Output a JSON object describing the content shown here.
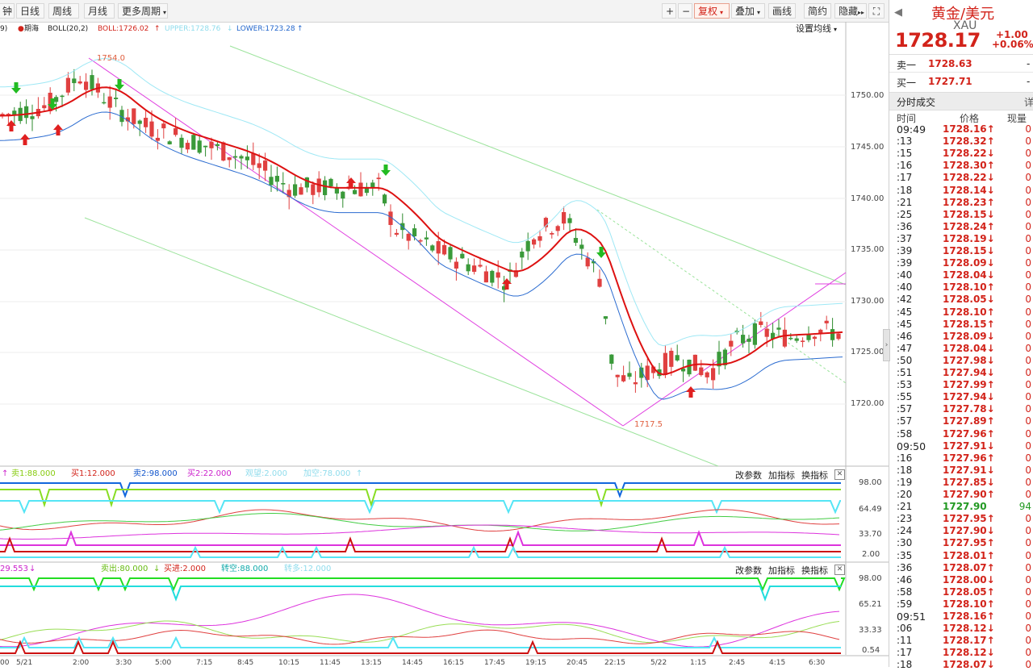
{
  "toolbar": {
    "period_buttons": [
      "钟",
      "日线",
      "周线",
      "月线",
      "更多周期"
    ],
    "right_buttons": [
      "复权",
      "叠加",
      "画线",
      "简约",
      "隐藏"
    ],
    "plus": "+",
    "minus": "−",
    "expand_icon": "fullscreen-icon",
    "double_arrow": "▸▸"
  },
  "main_legend": {
    "prefix": "9)",
    "contract": "期海",
    "indicator": "BOLL(20,2)",
    "boll": "BOLL:1726.02",
    "upper": "UPPER:1728.76",
    "lower": "LOWER:1723.28",
    "settings": "设置均线"
  },
  "price_axis": [
    "1750.00",
    "1745.00",
    "1740.00",
    "1735.00",
    "1730.00",
    "1725.00",
    "1720.00"
  ],
  "annotations": {
    "high": "1754.0",
    "low": "1717.5"
  },
  "panel1": {
    "sell1": "卖1:88.000",
    "buy1": "买1:12.000",
    "sell2": "卖2:98.000",
    "buy2": "买2:22.000",
    "extra1": "观望:2.000",
    "extra2": "加空:78.000",
    "axis": [
      "98.00",
      "64.49",
      "33.70",
      "2.00"
    ],
    "buttons": [
      "改参数",
      "加指标",
      "换指标"
    ]
  },
  "panel2": {
    "value": "29.553",
    "out": "卖出:80.000",
    "in": "买进:2.000",
    "short": "转空:88.000",
    "long": "转多:12.000",
    "axis": [
      "98.00",
      "65.21",
      "33.33",
      "0.54"
    ],
    "buttons": [
      "改参数",
      "加指标",
      "换指标"
    ]
  },
  "time_axis": [
    ":00",
    "5/21",
    "2:00",
    "3:30",
    "5:00",
    "7:15",
    "8:45",
    "10:15",
    "11:45",
    "13:15",
    "14:45",
    "16:15",
    "17:45",
    "19:15",
    "20:45",
    "22:15",
    "5/22",
    "1:15",
    "2:45",
    "4:15",
    "6:30"
  ],
  "quote": {
    "name": "黄金/美元",
    "code": "XAU",
    "price": "1728.17",
    "change": "+1.00",
    "change_pct": "+0.06%",
    "sell_label": "卖一",
    "sell_price": "1728.63",
    "sell_tail": "-",
    "buy_label": "买一",
    "buy_price": "1727.71",
    "buy_tail": "-",
    "tick_title": "分时成交",
    "tick_more": "详",
    "col_time": "时间",
    "col_price": "价格",
    "col_qty": "现量",
    "colors": {
      "up": "#d2231a",
      "down": "#229922"
    }
  },
  "ticks": [
    {
      "t": "09:49",
      "p": "1728.16↑",
      "q": "0",
      "dir": "up",
      "big": true
    },
    {
      "t": ":13",
      "p": "1728.32↑",
      "q": "0",
      "dir": "up"
    },
    {
      "t": ":15",
      "p": "1728.22↓",
      "q": "0",
      "dir": "up"
    },
    {
      "t": ":16",
      "p": "1728.30↑",
      "q": "0",
      "dir": "up"
    },
    {
      "t": ":17",
      "p": "1728.22↓",
      "q": "0",
      "dir": "up"
    },
    {
      "t": ":18",
      "p": "1728.14↓",
      "q": "0",
      "dir": "up"
    },
    {
      "t": ":21",
      "p": "1728.23↑",
      "q": "0",
      "dir": "up"
    },
    {
      "t": ":25",
      "p": "1728.15↓",
      "q": "0",
      "dir": "up"
    },
    {
      "t": ":36",
      "p": "1728.24↑",
      "q": "0",
      "dir": "up"
    },
    {
      "t": ":37",
      "p": "1728.19↓",
      "q": "0",
      "dir": "up"
    },
    {
      "t": ":39",
      "p": "1728.15↓",
      "q": "0",
      "dir": "up"
    },
    {
      "t": ":39",
      "p": "1728.09↓",
      "q": "0",
      "dir": "up"
    },
    {
      "t": ":40",
      "p": "1728.04↓",
      "q": "0",
      "dir": "up"
    },
    {
      "t": ":40",
      "p": "1728.10↑",
      "q": "0",
      "dir": "up"
    },
    {
      "t": ":42",
      "p": "1728.05↓",
      "q": "0",
      "dir": "up"
    },
    {
      "t": ":45",
      "p": "1728.10↑",
      "q": "0",
      "dir": "up"
    },
    {
      "t": ":45",
      "p": "1728.15↑",
      "q": "0",
      "dir": "up"
    },
    {
      "t": ":46",
      "p": "1728.09↓",
      "q": "0",
      "dir": "up"
    },
    {
      "t": ":47",
      "p": "1728.04↓",
      "q": "0",
      "dir": "up"
    },
    {
      "t": ":50",
      "p": "1727.98↓",
      "q": "0",
      "dir": "up"
    },
    {
      "t": ":51",
      "p": "1727.94↓",
      "q": "0",
      "dir": "up"
    },
    {
      "t": ":53",
      "p": "1727.99↑",
      "q": "0",
      "dir": "up"
    },
    {
      "t": ":55",
      "p": "1727.94↓",
      "q": "0",
      "dir": "up"
    },
    {
      "t": ":57",
      "p": "1727.78↓",
      "q": "0",
      "dir": "up"
    },
    {
      "t": ":57",
      "p": "1727.89↑",
      "q": "0",
      "dir": "up"
    },
    {
      "t": ":58",
      "p": "1727.96↑",
      "q": "0",
      "dir": "up"
    },
    {
      "t": "09:50",
      "p": "1727.91↓",
      "q": "0",
      "dir": "up",
      "big": true
    },
    {
      "t": ":16",
      "p": "1727.96↑",
      "q": "0",
      "dir": "up"
    },
    {
      "t": ":18",
      "p": "1727.91↓",
      "q": "0",
      "dir": "up"
    },
    {
      "t": ":19",
      "p": "1727.85↓",
      "q": "0",
      "dir": "up"
    },
    {
      "t": ":20",
      "p": "1727.90↑",
      "q": "0",
      "dir": "up"
    },
    {
      "t": ":21",
      "p": "1727.90",
      "q": "94",
      "dir": "down"
    },
    {
      "t": ":23",
      "p": "1727.95↑",
      "q": "0",
      "dir": "up"
    },
    {
      "t": ":24",
      "p": "1727.90↓",
      "q": "0",
      "dir": "up"
    },
    {
      "t": ":30",
      "p": "1727.95↑",
      "q": "0",
      "dir": "up"
    },
    {
      "t": ":35",
      "p": "1728.01↑",
      "q": "0",
      "dir": "up"
    },
    {
      "t": ":36",
      "p": "1728.07↑",
      "q": "0",
      "dir": "up"
    },
    {
      "t": ":46",
      "p": "1728.00↓",
      "q": "0",
      "dir": "up"
    },
    {
      "t": ":58",
      "p": "1728.05↑",
      "q": "0",
      "dir": "up"
    },
    {
      "t": ":59",
      "p": "1728.10↑",
      "q": "0",
      "dir": "up"
    },
    {
      "t": "09:51",
      "p": "1728.16↑",
      "q": "0",
      "dir": "up",
      "big": true
    },
    {
      "t": ":06",
      "p": "1728.12↓",
      "q": "0",
      "dir": "up"
    },
    {
      "t": ":11",
      "p": "1728.17↑",
      "q": "0",
      "dir": "up"
    },
    {
      "t": ":17",
      "p": "1728.12↓",
      "q": "0",
      "dir": "up"
    },
    {
      "t": ":18",
      "p": "1728.07↓",
      "q": "0",
      "dir": "up"
    }
  ]
}
